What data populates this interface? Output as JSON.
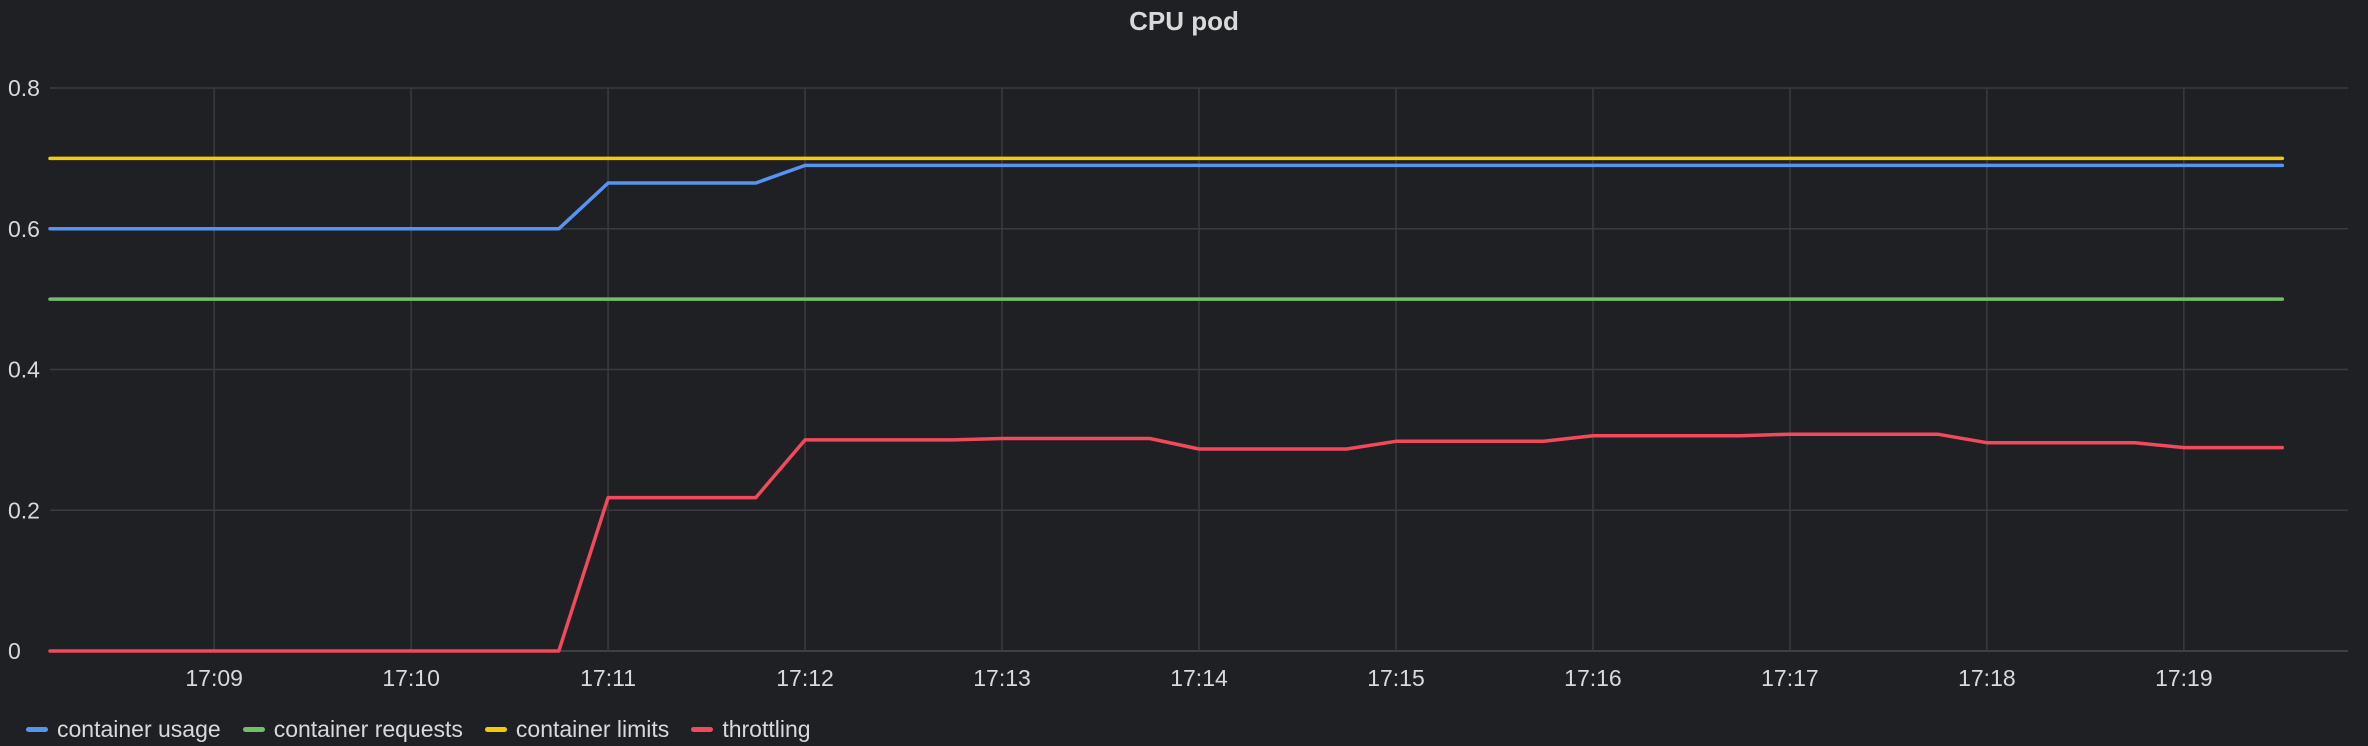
{
  "panel": {
    "title": "CPU pod"
  },
  "chart_data": {
    "type": "line",
    "title": "CPU pod",
    "xlabel": "",
    "ylabel": "",
    "x_ticks": [
      "17:09",
      "17:10",
      "17:11",
      "17:12",
      "17:13",
      "17:14",
      "17:15",
      "17:16",
      "17:17",
      "17:18",
      "17:19"
    ],
    "y_ticks": [
      "0",
      "0.2",
      "0.4",
      "0.6",
      "0.8"
    ],
    "x_range": [
      "17:08:10",
      "17:19:50"
    ],
    "ylim": [
      0,
      0.8
    ],
    "grid": true,
    "legend_position": "bottom-left",
    "series": [
      {
        "name": "container usage",
        "color": "#5794f2",
        "points": [
          [
            "17:08:10",
            0.6
          ],
          [
            "17:10:45",
            0.6
          ],
          [
            "17:11:00",
            0.665
          ],
          [
            "17:11:45",
            0.665
          ],
          [
            "17:12:00",
            0.69
          ],
          [
            "17:13:00",
            0.69
          ],
          [
            "17:14:00",
            0.69
          ],
          [
            "17:15:00",
            0.69
          ],
          [
            "17:16:00",
            0.69
          ],
          [
            "17:17:00",
            0.69
          ],
          [
            "17:18:00",
            0.69
          ],
          [
            "17:19:30",
            0.69
          ]
        ]
      },
      {
        "name": "container requests",
        "color": "#73bf69",
        "points": [
          [
            "17:08:10",
            0.5
          ],
          [
            "17:19:30",
            0.5
          ]
        ]
      },
      {
        "name": "container limits",
        "color": "#f2cc0c",
        "points": [
          [
            "17:08:10",
            0.7
          ],
          [
            "17:19:30",
            0.7
          ]
        ]
      },
      {
        "name": "throttling",
        "color": "#f2495c",
        "points": [
          [
            "17:08:10",
            0
          ],
          [
            "17:10:45",
            0
          ],
          [
            "17:11:00",
            0.218
          ],
          [
            "17:11:45",
            0.218
          ],
          [
            "17:12:00",
            0.3
          ],
          [
            "17:12:45",
            0.3
          ],
          [
            "17:13:00",
            0.302
          ],
          [
            "17:13:45",
            0.302
          ],
          [
            "17:14:00",
            0.287
          ],
          [
            "17:14:45",
            0.287
          ],
          [
            "17:15:00",
            0.298
          ],
          [
            "17:15:45",
            0.298
          ],
          [
            "17:16:00",
            0.306
          ],
          [
            "17:16:45",
            0.306
          ],
          [
            "17:17:00",
            0.308
          ],
          [
            "17:17:45",
            0.308
          ],
          [
            "17:18:00",
            0.296
          ],
          [
            "17:18:45",
            0.296
          ],
          [
            "17:19:00",
            0.289
          ],
          [
            "17:19:30",
            0.289
          ]
        ]
      }
    ]
  },
  "legend": [
    {
      "label": "container usage",
      "color": "#5794f2"
    },
    {
      "label": "container requests",
      "color": "#73bf69"
    },
    {
      "label": "container limits",
      "color": "#f2cc0c"
    },
    {
      "label": "throttling",
      "color": "#f2495c"
    }
  ]
}
